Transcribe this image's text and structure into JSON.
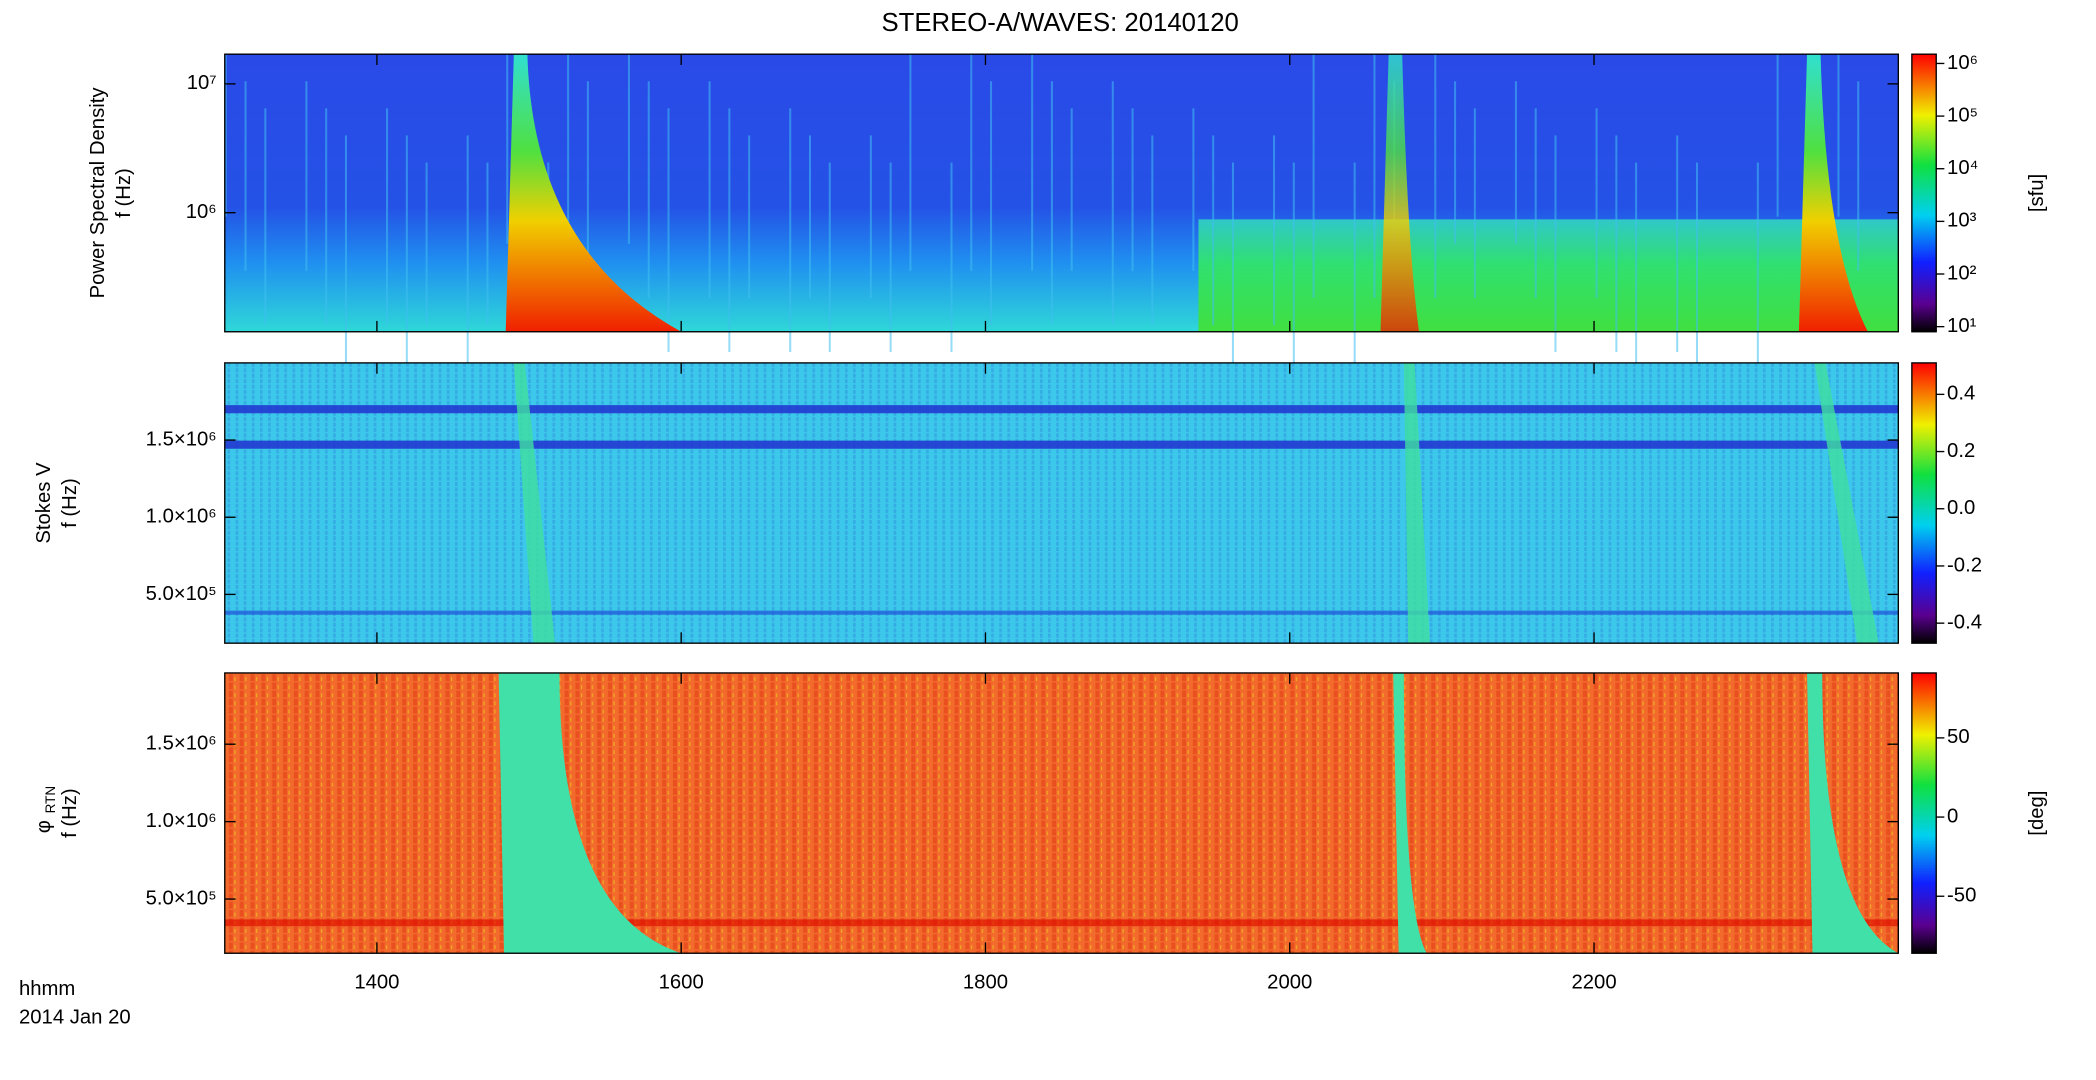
{
  "title": "STEREO-A/WAVES: 20140120",
  "x_axis": {
    "xlim": [
      1300,
      2400
    ],
    "xticks": [
      1400,
      1600,
      1800,
      2000,
      2200
    ],
    "label": "hhmm",
    "date": "2014 Jan 20"
  },
  "chart_data": [
    {
      "type": "heatmap",
      "ylabel_lines": [
        "Power Spectral Density",
        "f (Hz)"
      ],
      "ylog": true,
      "ylim": [
        119000,
        17000000
      ],
      "yticks": [
        {
          "value": 1000000,
          "label": "10⁶"
        },
        {
          "value": 10000000,
          "label": "10⁷"
        }
      ],
      "colorbar": {
        "label": "[sfu]",
        "log": true,
        "lim": [
          8,
          1500000
        ],
        "ticks": [
          {
            "value": 10,
            "label": "10¹"
          },
          {
            "value": 100,
            "label": "10²"
          },
          {
            "value": 1000,
            "label": "10³"
          },
          {
            "value": 10000,
            "label": "10⁴"
          },
          {
            "value": 100000,
            "label": "10⁵"
          },
          {
            "value": 1000000,
            "label": "10⁶"
          }
        ]
      }
    },
    {
      "type": "heatmap",
      "ylabel_lines": [
        "Stokes V",
        "f (Hz)"
      ],
      "ylog": false,
      "ylim": [
        184000,
        2000000
      ],
      "yticks": [
        {
          "value": 500000,
          "label": "5.0×10⁵"
        },
        {
          "value": 1000000,
          "label": "1.0×10⁶"
        },
        {
          "value": 1500000,
          "label": "1.5×10⁶"
        }
      ],
      "colorbar": {
        "log": false,
        "lim": [
          -0.47,
          0.51
        ],
        "ticks": [
          -0.4,
          -0.2,
          {
            "value": 0,
            "label": "0.0"
          },
          0.2,
          0.4
        ]
      }
    },
    {
      "type": "heatmap",
      "ylabel_symbol": "φ",
      "ylabel_subscript": "RTN",
      "ylabel_lines": [
        "f (Hz)"
      ],
      "ylog": false,
      "ylim": [
        150000,
        1960000
      ],
      "yticks": [
        {
          "value": 500000,
          "label": "5.0×10⁵"
        },
        {
          "value": 1000000,
          "label": "1.0×10⁶"
        },
        {
          "value": 1500000,
          "label": "1.5×10⁶"
        }
      ],
      "colorbar": {
        "label": "[deg]",
        "log": false,
        "lim": [
          -86,
          91
        ],
        "ticks": [
          -50,
          0,
          50
        ]
      }
    }
  ]
}
